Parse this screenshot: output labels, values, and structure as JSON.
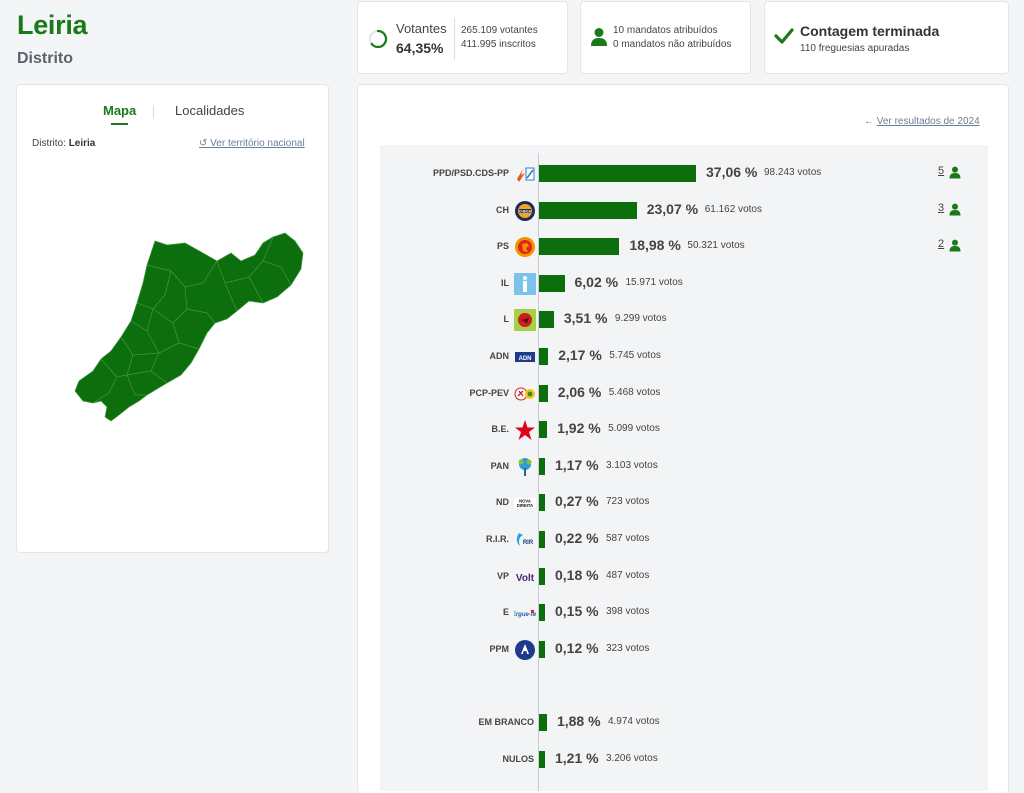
{
  "header": {
    "title": "Leiria",
    "subtitle": "Distrito"
  },
  "stats": {
    "votantes_label": "Votantes",
    "votantes_pct": "64,35%",
    "votantes_count": "265.109 votantes",
    "inscritos_count": "411.995 inscritos",
    "turnout_fraction": 0.6435,
    "mandatos_atribuidos": "10 mandatos atribuídos",
    "mandatos_nao_atribuidos": "0 mandatos não atribuídos",
    "contagem_title": "Contagem terminada",
    "contagem_sub": "110 freguesias apuradas"
  },
  "map_panel": {
    "tab_mapa": "Mapa",
    "tab_localidades": "Localidades",
    "distrito_label": "Distrito:",
    "distrito_value": "Leiria",
    "national_link": "Ver território nacional",
    "map_color": "#0d6e0d"
  },
  "results": {
    "previous_link": "Ver resultados de 2024",
    "bar_color": "#0d6e0d",
    "parties": [
      {
        "party": "PPD/PSD.CDS-PP",
        "logo": "psd-cds-logo",
        "pct": 37.06,
        "pct_label": "37,06 %",
        "votes": "98.243 votos",
        "seats": "5"
      },
      {
        "party": "CH",
        "logo": "chega-logo",
        "pct": 23.07,
        "pct_label": "23,07 %",
        "votes": "61.162 votos",
        "seats": "3"
      },
      {
        "party": "PS",
        "logo": "ps-logo",
        "pct": 18.98,
        "pct_label": "18,98 %",
        "votes": "50.321 votos",
        "seats": "2"
      },
      {
        "party": "IL",
        "logo": "il-logo",
        "pct": 6.02,
        "pct_label": "6,02 %",
        "votes": "15.971 votos"
      },
      {
        "party": "L",
        "logo": "livre-logo",
        "pct": 3.51,
        "pct_label": "3,51 %",
        "votes": "9.299 votos"
      },
      {
        "party": "ADN",
        "logo": "adn-logo",
        "pct": 2.17,
        "pct_label": "2,17 %",
        "votes": "5.745 votos"
      },
      {
        "party": "PCP-PEV",
        "logo": "cdu-logo",
        "pct": 2.06,
        "pct_label": "2,06 %",
        "votes": "5.468 votos"
      },
      {
        "party": "B.E.",
        "logo": "be-logo",
        "pct": 1.92,
        "pct_label": "1,92 %",
        "votes": "5.099 votos"
      },
      {
        "party": "PAN",
        "logo": "pan-logo",
        "pct": 1.17,
        "pct_label": "1,17 %",
        "votes": "3.103 votos"
      },
      {
        "party": "ND",
        "logo": "nova-direita-logo",
        "pct": 0.27,
        "pct_label": "0,27 %",
        "votes": "723 votos"
      },
      {
        "party": "R.I.R.",
        "logo": "rir-logo",
        "pct": 0.22,
        "pct_label": "0,22 %",
        "votes": "587 votos"
      },
      {
        "party": "VP",
        "logo": "volt-logo",
        "pct": 0.18,
        "pct_label": "0,18 %",
        "votes": "487 votos"
      },
      {
        "party": "E",
        "logo": "ergue-te-logo",
        "pct": 0.15,
        "pct_label": "0,15 %",
        "votes": "398 votos"
      },
      {
        "party": "PPM",
        "logo": "ppm-logo",
        "pct": 0.12,
        "pct_label": "0,12 %",
        "votes": "323 votos"
      }
    ],
    "others": [
      {
        "party": "EM BRANCO",
        "pct": 1.88,
        "pct_label": "1,88 %",
        "votes": "4.974 votos"
      },
      {
        "party": "NULOS",
        "pct": 1.21,
        "pct_label": "1,21 %",
        "votes": "3.206 votos"
      }
    ]
  }
}
